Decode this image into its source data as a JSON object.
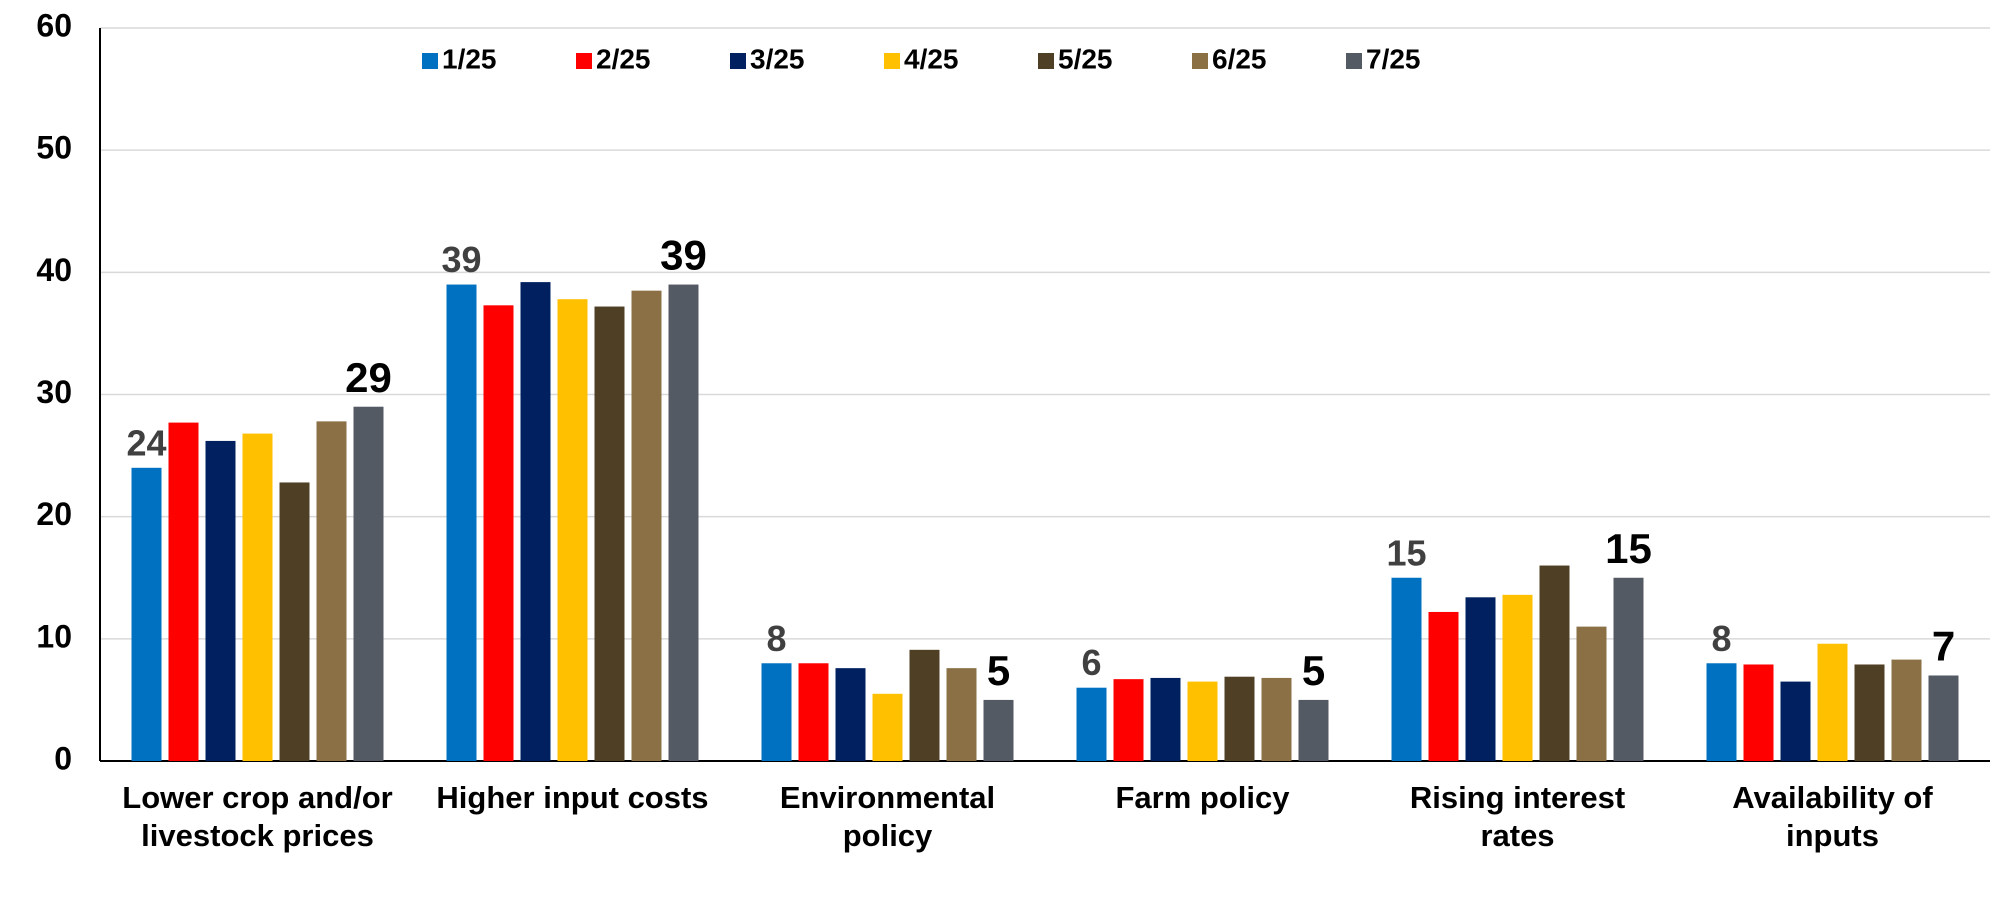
{
  "chart_data": {
    "type": "bar",
    "categories": [
      "Lower crop and/or livestock prices",
      "Higher input costs",
      "Environmental policy",
      "Farm policy",
      "Rising interest rates",
      "Availability of inputs"
    ],
    "series": [
      {
        "name": "1/25",
        "color": "#0070c0",
        "values": [
          24,
          39,
          8,
          6,
          15,
          8
        ]
      },
      {
        "name": "2/25",
        "color": "#ff0000",
        "values": [
          27.7,
          37.3,
          8.0,
          6.7,
          12.2,
          7.9
        ]
      },
      {
        "name": "3/25",
        "color": "#002060",
        "values": [
          26.2,
          39.2,
          7.6,
          6.8,
          13.4,
          6.5
        ]
      },
      {
        "name": "4/25",
        "color": "#ffc000",
        "values": [
          26.8,
          37.8,
          5.5,
          6.5,
          13.6,
          9.6
        ]
      },
      {
        "name": "5/25",
        "color": "#4f3f24",
        "values": [
          22.8,
          37.2,
          9.1,
          6.9,
          16.0,
          7.9
        ]
      },
      {
        "name": "6/25",
        "color": "#8b7045",
        "values": [
          27.8,
          38.5,
          7.6,
          6.8,
          11.0,
          8.3
        ]
      },
      {
        "name": "7/25",
        "color": "#545a64",
        "values": [
          29,
          39,
          5,
          5,
          15,
          7
        ]
      }
    ],
    "labeled_series": [
      0,
      6
    ],
    "ylim": [
      0,
      60
    ],
    "yticks": [
      0,
      10,
      20,
      30,
      40,
      50,
      60
    ],
    "grid": true,
    "legend": "top"
  }
}
